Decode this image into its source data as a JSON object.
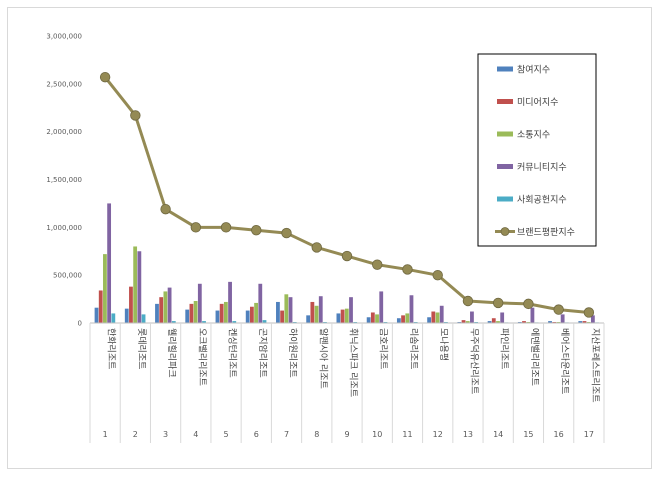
{
  "chart_data": {
    "type": "bar",
    "title": "",
    "xlabel": "",
    "ylabel": "",
    "ylim": [
      0,
      3000000
    ],
    "yticks": [
      "0",
      "500,000",
      "1,000,000",
      "1,500,000",
      "2,000,000",
      "2,500,000",
      "3,000,000"
    ],
    "grid": false,
    "legend_position": "top-right",
    "categories": [
      {
        "num": "1",
        "name": "한화리조트"
      },
      {
        "num": "2",
        "name": "롯데리조트"
      },
      {
        "num": "3",
        "name": "웰리힐리파크"
      },
      {
        "num": "4",
        "name": "오크밸리리조트"
      },
      {
        "num": "5",
        "name": "켄싱턴리조트"
      },
      {
        "num": "6",
        "name": "곤지암리조트"
      },
      {
        "num": "7",
        "name": "하이원리조트"
      },
      {
        "num": "8",
        "name": "알펜시아 리조트"
      },
      {
        "num": "9",
        "name": "휘닉스파크 리조트"
      },
      {
        "num": "10",
        "name": "금호리조트"
      },
      {
        "num": "11",
        "name": "리솜리조트"
      },
      {
        "num": "12",
        "name": "모나용평"
      },
      {
        "num": "13",
        "name": "무주덕유산리조트"
      },
      {
        "num": "14",
        "name": "파인리조트"
      },
      {
        "num": "15",
        "name": "에덴밸리리조트"
      },
      {
        "num": "16",
        "name": "베어스타운리조트"
      },
      {
        "num": "17",
        "name": "지산포레스트리조트"
      }
    ],
    "series": [
      {
        "name": "참여지수",
        "kind": "bar",
        "color": "#4f81bd",
        "values": [
          160000,
          150000,
          200000,
          140000,
          130000,
          130000,
          220000,
          80000,
          100000,
          60000,
          50000,
          60000,
          10000,
          20000,
          10000,
          20000,
          20000
        ]
      },
      {
        "name": "미디어지수",
        "kind": "bar",
        "color": "#c0504d",
        "values": [
          340000,
          380000,
          270000,
          200000,
          200000,
          170000,
          130000,
          220000,
          140000,
          110000,
          80000,
          120000,
          30000,
          50000,
          20000,
          10000,
          20000
        ]
      },
      {
        "name": "소통지수",
        "kind": "bar",
        "color": "#9bbb59",
        "values": [
          720000,
          800000,
          330000,
          230000,
          220000,
          210000,
          300000,
          180000,
          150000,
          90000,
          100000,
          110000,
          20000,
          20000,
          10000,
          10000,
          10000
        ]
      },
      {
        "name": "커뮤니티지수",
        "kind": "bar",
        "color": "#8064a2",
        "values": [
          1250000,
          750000,
          370000,
          410000,
          430000,
          410000,
          270000,
          280000,
          270000,
          330000,
          290000,
          180000,
          120000,
          110000,
          160000,
          90000,
          80000
        ]
      },
      {
        "name": "사회공헌지수",
        "kind": "bar",
        "color": "#4bacc6",
        "values": [
          100000,
          90000,
          20000,
          20000,
          20000,
          30000,
          10000,
          10000,
          10000,
          10000,
          10000,
          10000,
          10000,
          5000,
          5000,
          5000,
          5000
        ]
      },
      {
        "name": "브랜드평판지수",
        "kind": "line",
        "color": "#948a54",
        "values": [
          2570000,
          2170000,
          1190000,
          1000000,
          1000000,
          970000,
          940000,
          790000,
          700000,
          610000,
          560000,
          500000,
          230000,
          210000,
          200000,
          140000,
          110000
        ]
      }
    ]
  }
}
